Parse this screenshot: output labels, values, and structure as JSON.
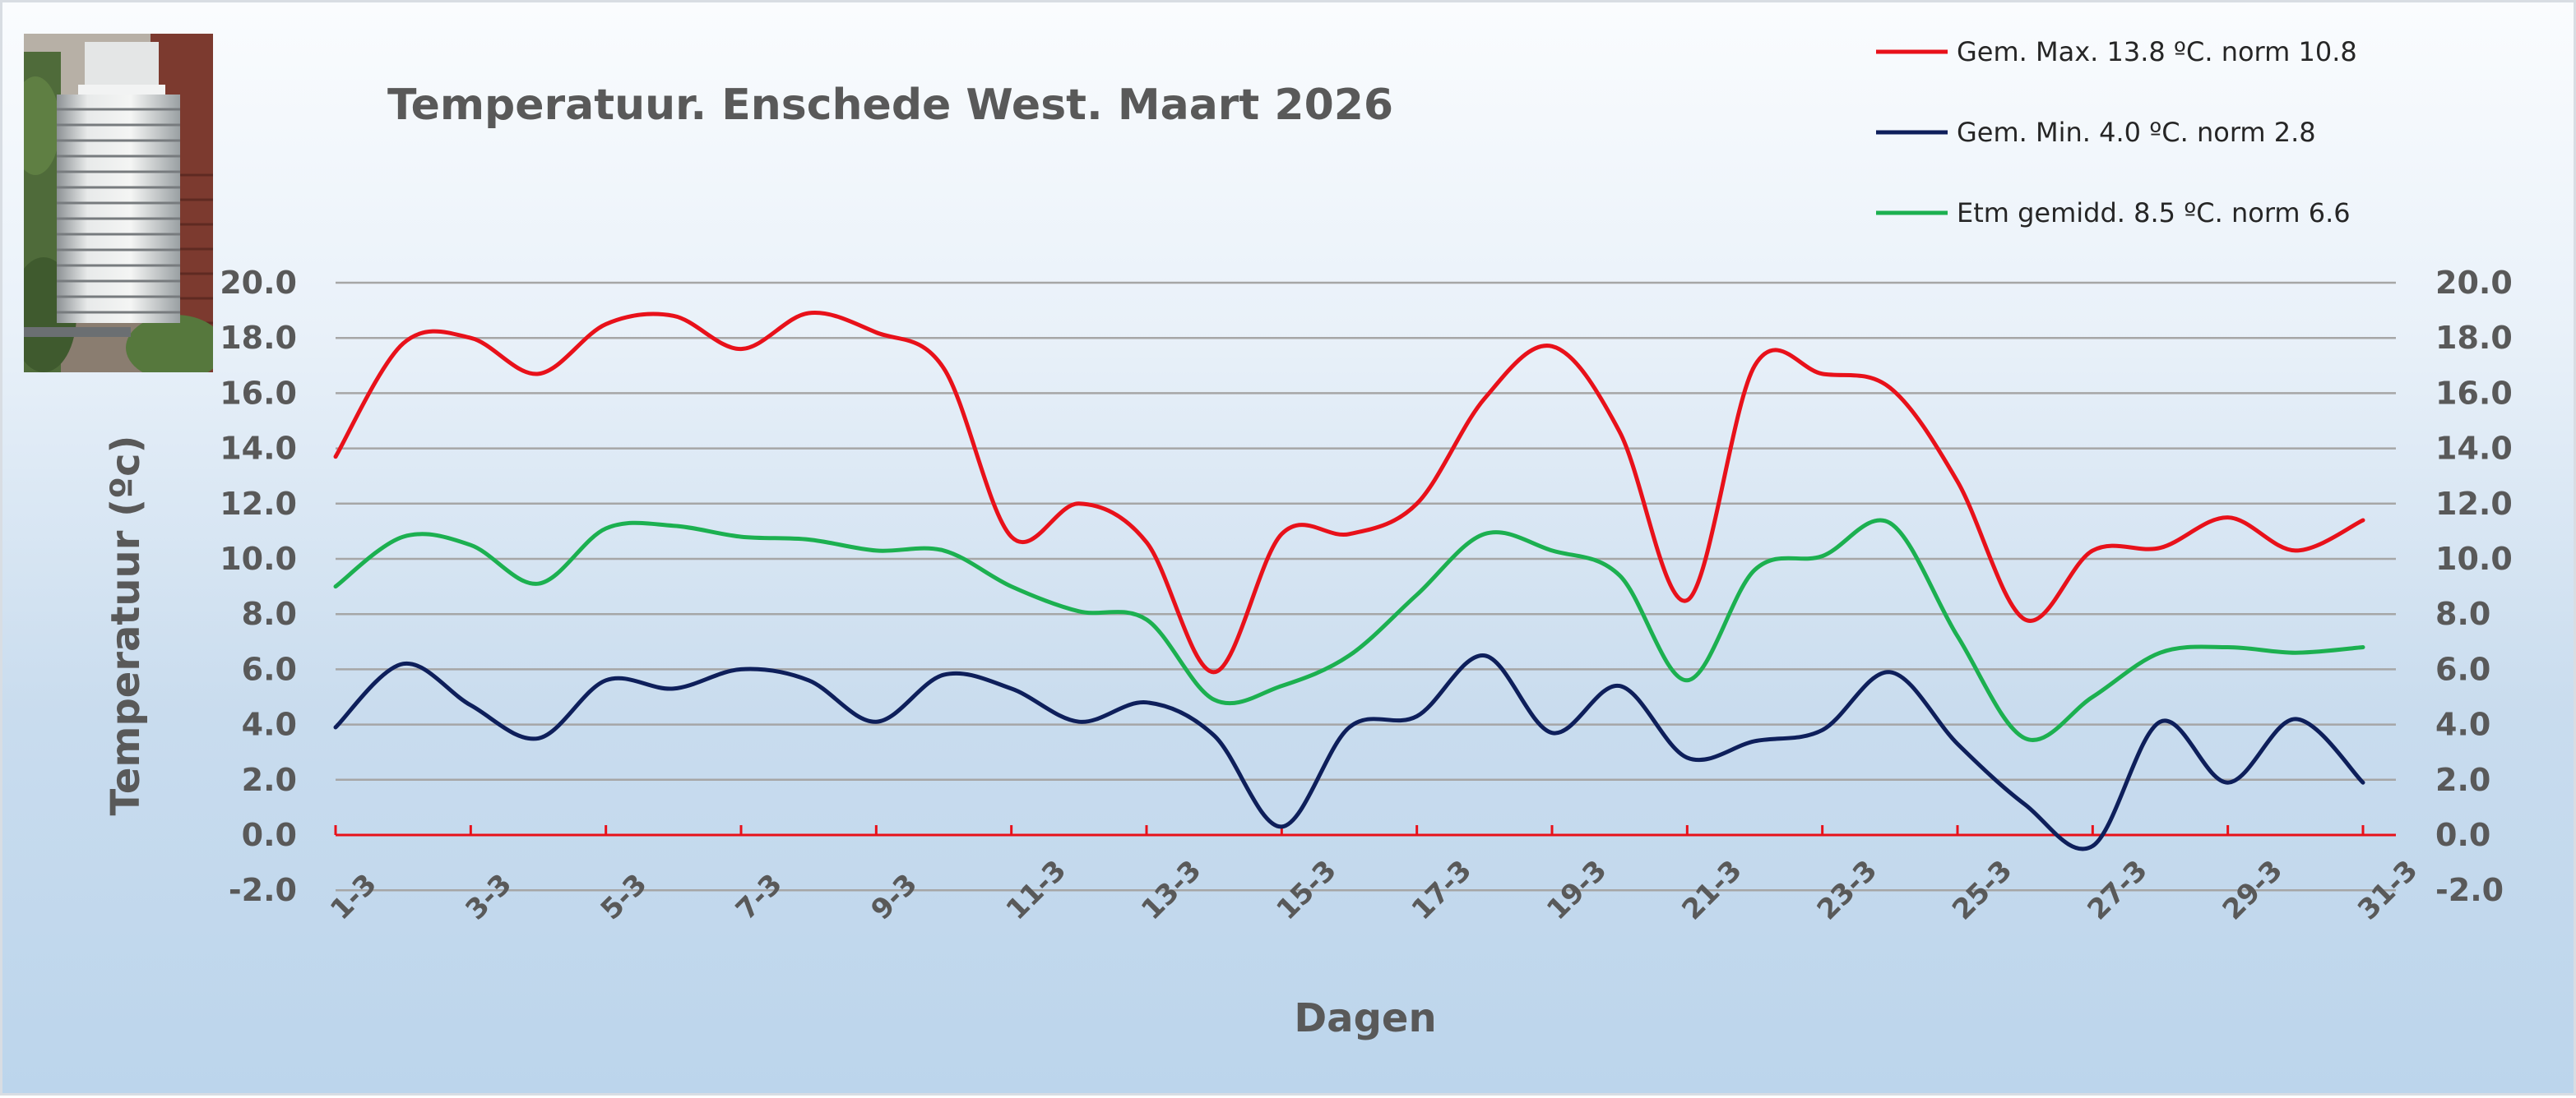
{
  "chart_data": {
    "type": "line",
    "title": "Temperatuur. Enschede West. Maart 2026",
    "xlabel": "Dagen",
    "ylabel": "Temperatuur (ºc)",
    "ylim": [
      -2.0,
      20.0
    ],
    "y_ticks": [
      "-2.0",
      "0.0",
      "2.0",
      "4.0",
      "6.0",
      "8.0",
      "10.0",
      "12.0",
      "14.0",
      "16.0",
      "18.0",
      "20.0"
    ],
    "grid": true,
    "legend_position": "top-right",
    "x": [
      "1-3",
      "2-3",
      "3-3",
      "4-3",
      "5-3",
      "6-3",
      "7-3",
      "8-3",
      "9-3",
      "10-3",
      "11-3",
      "12-3",
      "13-3",
      "14-3",
      "15-3",
      "16-3",
      "17-3",
      "18-3",
      "19-3",
      "20-3",
      "21-3",
      "22-3",
      "23-3",
      "24-3",
      "25-3",
      "26-3",
      "27-3",
      "28-3",
      "29-3",
      "30-3",
      "31-3"
    ],
    "x_tick_labels": [
      "1-3",
      "3-3",
      "5-3",
      "7-3",
      "9-3",
      "11-3",
      "13-3",
      "15-3",
      "17-3",
      "19-3",
      "21-3",
      "23-3",
      "25-3",
      "27-3",
      "29-3",
      "31-3"
    ],
    "series": [
      {
        "name": "Gem. Max. 13.8  ºC. norm 10.8",
        "color": "#e8111a",
        "values": [
          13.7,
          17.8,
          18.0,
          16.7,
          18.5,
          18.8,
          17.6,
          18.9,
          18.2,
          16.9,
          10.8,
          12.0,
          10.6,
          5.9,
          10.9,
          10.9,
          12.0,
          15.8,
          17.7,
          14.6,
          8.5,
          17.0,
          16.7,
          16.2,
          12.8,
          7.8,
          10.3,
          10.4,
          11.5,
          10.3,
          11.4
        ]
      },
      {
        "name": "Gem. Min. 4.0  ºC. norm 2.8",
        "color": "#0e1f5b",
        "values": [
          3.9,
          6.2,
          4.7,
          3.5,
          5.6,
          5.3,
          6.0,
          5.6,
          4.1,
          5.8,
          5.3,
          4.1,
          4.8,
          3.6,
          0.3,
          3.9,
          4.3,
          6.5,
          3.7,
          5.4,
          2.8,
          3.4,
          3.8,
          5.9,
          3.3,
          1.1,
          -0.4,
          4.1,
          1.9,
          4.2,
          1.9
        ]
      },
      {
        "name": "Etm gemidd. 8.5  ºC. norm 6.6",
        "color": "#1cb050",
        "values": [
          9.0,
          10.8,
          10.5,
          9.1,
          11.1,
          11.2,
          10.8,
          10.7,
          10.3,
          10.3,
          9.0,
          8.1,
          7.8,
          4.9,
          5.4,
          6.5,
          8.7,
          10.9,
          10.3,
          9.4,
          5.6,
          9.6,
          10.1,
          11.3,
          7.2,
          3.5,
          5.0,
          6.6,
          6.8,
          6.6,
          6.8
        ]
      }
    ],
    "zero_line_color": "#e8111a",
    "grid_color": "#a6a6a6"
  },
  "photo": {
    "icon": "thermometer-screen-photo"
  }
}
